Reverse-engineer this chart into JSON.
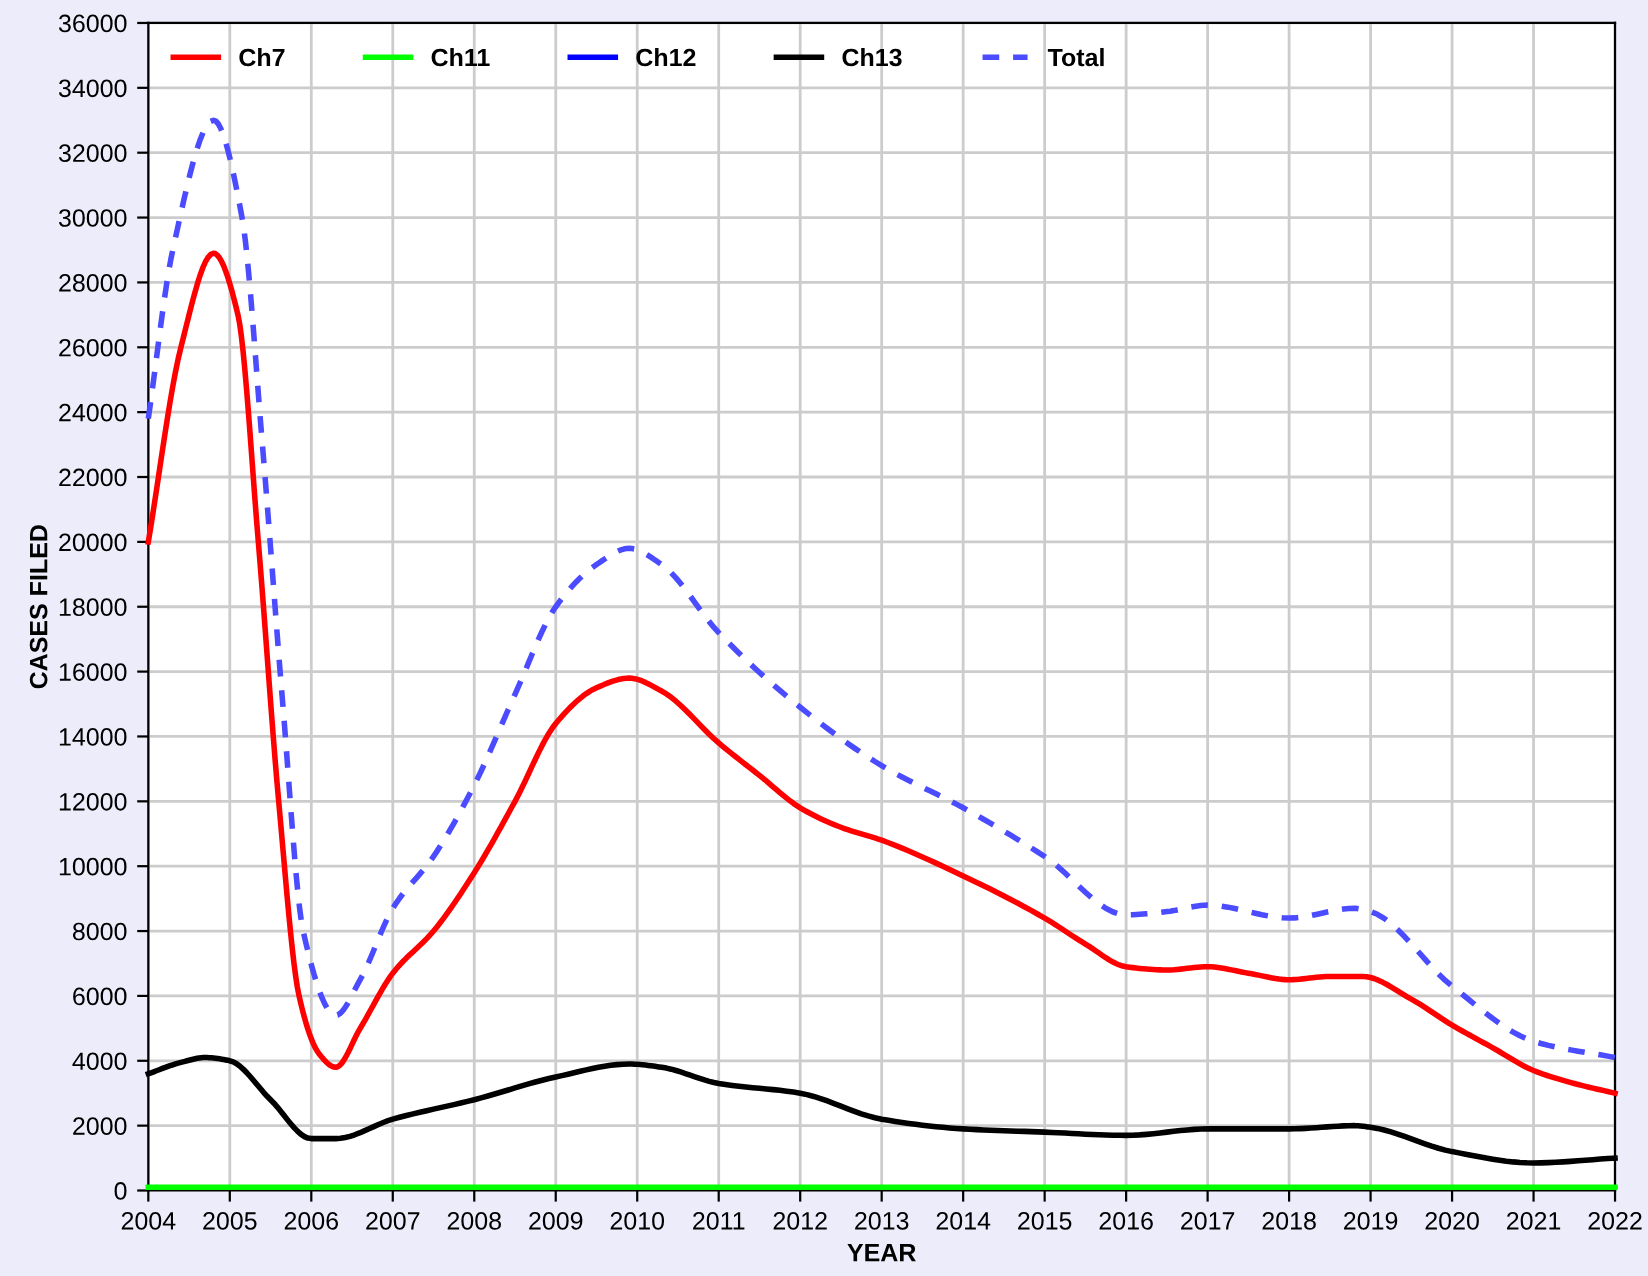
{
  "chart_data": {
    "type": "line",
    "xlabel": "YEAR",
    "ylabel": "CASES FILED",
    "xlim": [
      2004,
      2022
    ],
    "ylim": [
      0,
      36000
    ],
    "xticks": [
      2004,
      2005,
      2006,
      2007,
      2008,
      2009,
      2010,
      2011,
      2012,
      2013,
      2014,
      2015,
      2016,
      2017,
      2018,
      2019,
      2020,
      2021,
      2022
    ],
    "yticks": [
      0,
      2000,
      4000,
      6000,
      8000,
      10000,
      12000,
      14000,
      16000,
      18000,
      20000,
      22000,
      24000,
      26000,
      28000,
      30000,
      32000,
      34000,
      36000
    ],
    "grid": true,
    "legend": "top left",
    "marker": "none",
    "series": [
      {
        "name": "Ch7",
        "color": "#ff0000",
        "line_style": "solid",
        "x": [
          2004,
          2004.4,
          2004.8,
          2005.1,
          2005.35,
          2005.6,
          2005.85,
          2006.1,
          2006.3,
          2006.6,
          2007,
          2007.5,
          2008,
          2008.5,
          2009,
          2009.5,
          2009.9,
          2010.3,
          2011,
          2011.5,
          2012,
          2012.5,
          2013,
          2014,
          2015,
          2015.5,
          2016,
          2016.5,
          2017,
          2017.5,
          2018,
          2018.5,
          2018.9,
          2019.5,
          2020,
          2020.5,
          2021,
          2021.5,
          2022
        ],
        "values": [
          20000,
          26000,
          28900,
          27000,
          20000,
          12000,
          6000,
          4200,
          3800,
          5000,
          6700,
          8000,
          9800,
          12000,
          14400,
          15500,
          15800,
          15400,
          13800,
          12800,
          11800,
          11200,
          10800,
          9700,
          8400,
          7600,
          6900,
          6800,
          6900,
          6700,
          6500,
          6600,
          6600,
          5900,
          5100,
          4400,
          3700,
          3300,
          3000
        ]
      },
      {
        "name": "Ch11",
        "color": "#00ff00",
        "line_style": "solid",
        "x": [
          2004,
          2010,
          2016,
          2022
        ],
        "values": [
          100,
          100,
          100,
          100
        ]
      },
      {
        "name": "Ch12",
        "color": "#0000ff",
        "line_style": "solid"
      },
      {
        "name": "Ch13",
        "color": "#000000",
        "line_style": "solid",
        "x": [
          2004,
          2004.4,
          2004.7,
          2005,
          2005.5,
          2006,
          2006.3,
          2007,
          2008,
          2009,
          2009.9,
          2010.3,
          2011,
          2012,
          2013,
          2014,
          2015,
          2016,
          2017,
          2018,
          2018.8,
          2019,
          2020,
          2021,
          2022
        ],
        "values": [
          3600,
          3950,
          4100,
          4000,
          2800,
          1600,
          1600,
          2200,
          2800,
          3500,
          3900,
          3800,
          3300,
          3000,
          2200,
          1900,
          1800,
          1700,
          1900,
          1900,
          2000,
          1950,
          1200,
          850,
          1000
        ]
      },
      {
        "name": "Total",
        "color": "#4b4bff",
        "line_style": "dashed",
        "x": [
          2004,
          2004.3,
          2004.8,
          2005.15,
          2005.4,
          2005.65,
          2005.9,
          2006.3,
          2006.6,
          2007,
          2007.5,
          2008,
          2008.5,
          2009,
          2009.5,
          2009.9,
          2010.3,
          2011,
          2012,
          2013,
          2014,
          2015,
          2016,
          2016.5,
          2017,
          2018,
          2018.8,
          2019,
          2020,
          2021,
          2022
        ],
        "values": [
          23800,
          29000,
          33000,
          30000,
          23000,
          15000,
          8000,
          5400,
          6500,
          8700,
          10300,
          12500,
          15300,
          18000,
          19300,
          19800,
          19300,
          17200,
          14900,
          13100,
          11800,
          10300,
          8500,
          8600,
          8800,
          8400,
          8700,
          8600,
          6300,
          4600,
          4100
        ]
      }
    ]
  }
}
